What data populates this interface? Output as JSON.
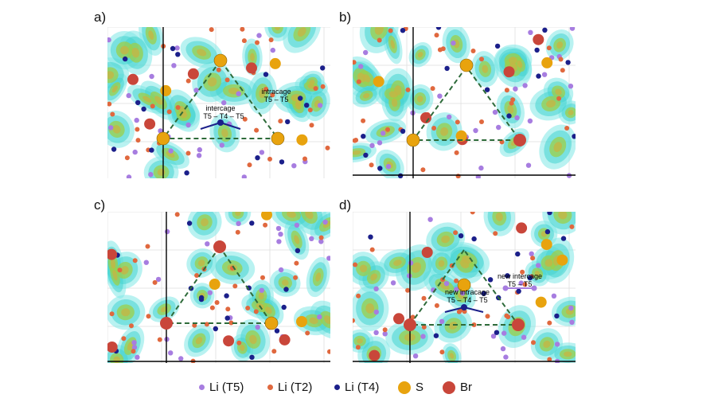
{
  "panels": [
    {
      "label": "a)",
      "annotations": [
        "intracage",
        "T5 – T5",
        "intercage",
        "T5 – T4 – T5"
      ]
    },
    {
      "label": "b)",
      "annotations": []
    },
    {
      "label": "c)",
      "annotations": []
    },
    {
      "label": "d)",
      "annotations": [
        "new intercage",
        "T5 – T5",
        "new intracage",
        "T5 – T4 – T5"
      ]
    }
  ],
  "legend": [
    {
      "label": "Li (T5)",
      "color": "#a77de0"
    },
    {
      "label": "Li (T2)",
      "color": "#e0683e"
    },
    {
      "label": "Li (T4)",
      "color": "#1b1f8a"
    },
    {
      "label": "S",
      "color": "#e8a30e"
    },
    {
      "label": "Br",
      "color": "#c9463a"
    }
  ],
  "colors": {
    "density_outer": "#7fe8e6",
    "density_mid": "#45d3d0",
    "density_core": "#9ccf4a",
    "density_center": "#c4b545",
    "triangle": "#2e6b3a"
  }
}
